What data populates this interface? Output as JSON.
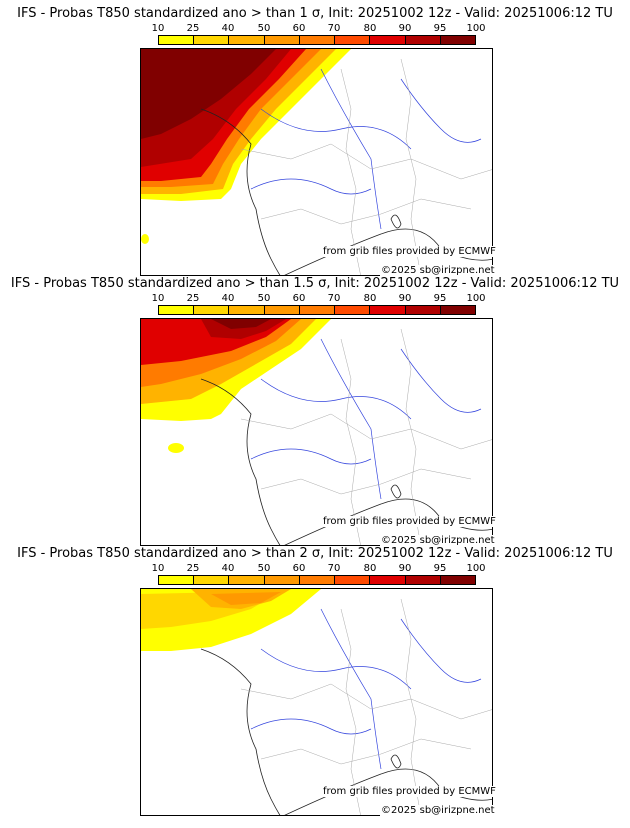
{
  "panels": [
    {
      "title": "IFS - Probas T850  standardized ano > than 1 σ, Init: 20251002 12z - Valid: 20251006:12 TU"
    },
    {
      "title": "IFS - Probas T850  standardized ano > than 1.5 σ, Init: 20251002 12z - Valid: 20251006:12 TU"
    },
    {
      "title": "IFS - Probas T850  standardized ano > than 2 σ, Init: 20251002 12z - Valid: 20251006:12 TU"
    }
  ],
  "colorbar": {
    "ticks": [
      "10",
      "25",
      "40",
      "50",
      "60",
      "70",
      "80",
      "90",
      "95",
      "100"
    ],
    "colors": [
      "#ffff00",
      "#ffd700",
      "#ffb300",
      "#ff9900",
      "#ff7b00",
      "#ff4a00",
      "#e00000",
      "#b00000",
      "#800000"
    ]
  },
  "credit": "from grib files provided by ECMWF",
  "copyright": "©2025 sb@irizpne.net"
}
